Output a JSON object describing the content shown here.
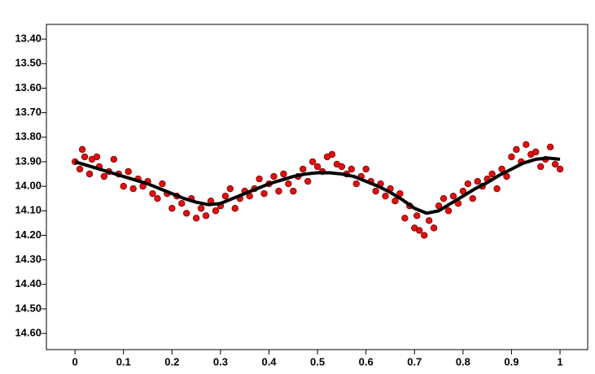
{
  "chart_data": {
    "type": "scatter",
    "y_inverted": true,
    "xlim": [
      -0.059,
      1.057
    ],
    "xticks": [
      0,
      0.1,
      0.2,
      0.3,
      0.4,
      0.5,
      0.6,
      0.7,
      0.8,
      0.9,
      1
    ],
    "ylim": [
      13.34,
      14.666
    ],
    "yticks": [
      {
        "value": 13.4,
        "label": "13.40"
      },
      {
        "value": 13.5,
        "label": "13.50"
      },
      {
        "value": 13.6,
        "label": "13.60"
      },
      {
        "value": 13.7,
        "label": "13.70"
      },
      {
        "value": 13.8,
        "label": "13.80"
      },
      {
        "value": 13.9,
        "label": "13.90"
      },
      {
        "value": 14.0,
        "label": "14.00"
      },
      {
        "value": 14.1,
        "label": "14.10"
      },
      {
        "value": 14.2,
        "label": "14.20"
      },
      {
        "value": 14.3,
        "label": "14.30"
      },
      {
        "value": 14.4,
        "label": "14.40"
      },
      {
        "value": 14.5,
        "label": "14.50"
      },
      {
        "value": 14.6,
        "label": "14.60"
      }
    ],
    "series": [
      {
        "type": "scatter",
        "color": "#e01010",
        "x": [
          0.0,
          0.01,
          0.015,
          0.02,
          0.03,
          0.035,
          0.045,
          0.05,
          0.06,
          0.07,
          0.08,
          0.09,
          0.1,
          0.11,
          0.12,
          0.13,
          0.14,
          0.15,
          0.16,
          0.17,
          0.18,
          0.19,
          0.2,
          0.21,
          0.22,
          0.23,
          0.24,
          0.25,
          0.26,
          0.27,
          0.28,
          0.29,
          0.3,
          0.31,
          0.32,
          0.33,
          0.34,
          0.35,
          0.36,
          0.37,
          0.38,
          0.39,
          0.4,
          0.41,
          0.42,
          0.43,
          0.44,
          0.45,
          0.46,
          0.47,
          0.48,
          0.49,
          0.5,
          0.51,
          0.52,
          0.53,
          0.54,
          0.55,
          0.56,
          0.57,
          0.58,
          0.59,
          0.6,
          0.61,
          0.62,
          0.63,
          0.64,
          0.65,
          0.66,
          0.67,
          0.68,
          0.69,
          0.7,
          0.705,
          0.71,
          0.72,
          0.73,
          0.74,
          0.75,
          0.76,
          0.77,
          0.78,
          0.79,
          0.8,
          0.81,
          0.82,
          0.83,
          0.84,
          0.85,
          0.86,
          0.87,
          0.88,
          0.89,
          0.9,
          0.91,
          0.92,
          0.93,
          0.94,
          0.95,
          0.96,
          0.97,
          0.98,
          0.99,
          1.0
        ],
        "values": [
          13.9,
          13.93,
          13.85,
          13.88,
          13.95,
          13.89,
          13.88,
          13.92,
          13.96,
          13.94,
          13.89,
          13.95,
          14.0,
          13.94,
          14.01,
          13.97,
          14.0,
          13.98,
          14.03,
          14.05,
          13.99,
          14.03,
          14.09,
          14.04,
          14.07,
          14.11,
          14.05,
          14.13,
          14.09,
          14.12,
          14.06,
          14.1,
          14.08,
          14.04,
          14.01,
          14.09,
          14.05,
          14.02,
          14.04,
          14.01,
          13.97,
          14.03,
          13.99,
          13.96,
          14.02,
          13.95,
          13.99,
          14.02,
          13.96,
          13.93,
          13.98,
          13.9,
          13.92,
          13.94,
          13.88,
          13.87,
          13.91,
          13.92,
          13.95,
          13.93,
          13.99,
          13.96,
          13.93,
          13.98,
          14.02,
          13.99,
          14.04,
          14.01,
          14.06,
          14.03,
          14.13,
          14.08,
          14.17,
          14.12,
          14.18,
          14.2,
          14.14,
          14.17,
          14.08,
          14.05,
          14.1,
          14.04,
          14.07,
          14.02,
          13.99,
          14.05,
          13.98,
          14.0,
          13.97,
          13.95,
          14.01,
          13.93,
          13.96,
          13.88,
          13.85,
          13.9,
          13.83,
          13.87,
          13.86,
          13.92,
          13.89,
          13.84,
          13.91,
          13.93
        ]
      },
      {
        "type": "line",
        "color": "#000000",
        "x": [
          0,
          0.025,
          0.05,
          0.075,
          0.1,
          0.125,
          0.15,
          0.175,
          0.2,
          0.225,
          0.25,
          0.275,
          0.3,
          0.325,
          0.35,
          0.375,
          0.4,
          0.425,
          0.45,
          0.475,
          0.5,
          0.525,
          0.55,
          0.575,
          0.6,
          0.625,
          0.65,
          0.675,
          0.7,
          0.725,
          0.75,
          0.775,
          0.8,
          0.825,
          0.85,
          0.875,
          0.9,
          0.925,
          0.95,
          0.975,
          1
        ],
        "values": [
          13.9,
          13.915,
          13.93,
          13.945,
          13.96,
          13.975,
          13.99,
          14.01,
          14.03,
          14.05,
          14.065,
          14.075,
          14.07,
          14.05,
          14.03,
          14.01,
          13.99,
          13.975,
          13.96,
          13.95,
          13.945,
          13.945,
          13.95,
          13.96,
          13.98,
          14.0,
          14.025,
          14.055,
          14.09,
          14.11,
          14.1,
          14.07,
          14.04,
          14.01,
          13.985,
          13.955,
          13.93,
          13.905,
          13.89,
          13.885,
          13.89
        ]
      }
    ]
  }
}
